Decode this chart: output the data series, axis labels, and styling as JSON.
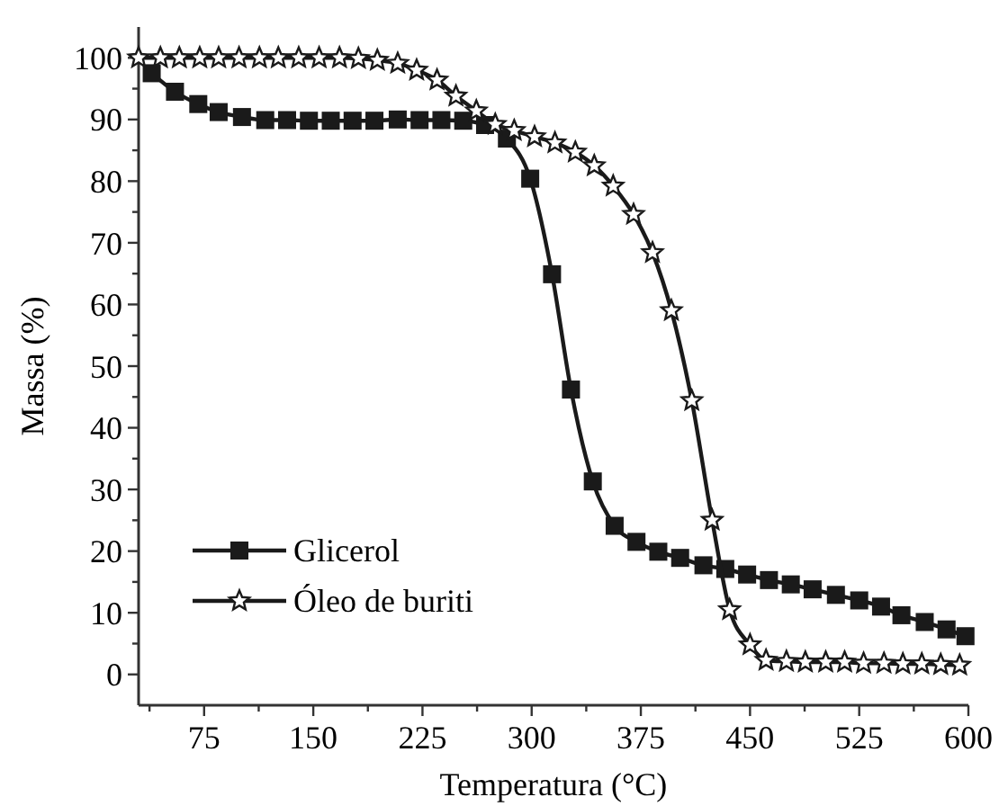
{
  "chart_data": {
    "type": "line",
    "xlabel": "Temperatura (°C)",
    "ylabel": "Massa (%)",
    "xlim": [
      30,
      600
    ],
    "ylim": [
      -5,
      105
    ],
    "xticks": [
      {
        "value": 37.5,
        "label": null
      },
      75,
      {
        "value": 112.5,
        "label": null
      },
      150,
      {
        "value": 187.5,
        "label": null
      },
      225,
      {
        "value": 262.5,
        "label": null
      },
      300,
      {
        "value": 337.5,
        "label": null
      },
      375,
      {
        "value": 412.5,
        "label": null
      },
      450,
      {
        "value": 487.5,
        "label": null
      },
      525,
      {
        "value": 562.5,
        "label": null
      },
      600
    ],
    "yticks": [
      0,
      {
        "value": 5,
        "label": null
      },
      10,
      {
        "value": 15,
        "label": null
      },
      20,
      {
        "value": 25,
        "label": null
      },
      30,
      {
        "value": 35,
        "label": null
      },
      40,
      {
        "value": 45,
        "label": null
      },
      50,
      {
        "value": 55,
        "label": null
      },
      60,
      {
        "value": 65,
        "label": null
      },
      70,
      {
        "value": 75,
        "label": null
      },
      80,
      {
        "value": 85,
        "label": null
      },
      90,
      {
        "value": 95,
        "label": null
      },
      100
    ],
    "grid": false,
    "legend": "bottom left",
    "line_style": "solid",
    "series": [
      {
        "name": "Glicerol",
        "color": "#1a1a1a",
        "marker": "square",
        "x": [
          39,
          55,
          71,
          85,
          101,
          117,
          132,
          147,
          162,
          177,
          192,
          208,
          223,
          238,
          253,
          268,
          283,
          299,
          314,
          327,
          342,
          357,
          372,
          387,
          402,
          418,
          433,
          448,
          463,
          478,
          493,
          509,
          525,
          540,
          554,
          570,
          585,
          598
        ],
        "values": [
          97.5,
          94.5,
          92.5,
          91.2,
          90.4,
          89.9,
          89.9,
          89.8,
          89.8,
          89.8,
          89.8,
          90,
          89.9,
          89.9,
          89.8,
          89.1,
          86.9,
          80.4,
          64.9,
          46.2,
          31.3,
          24.1,
          21.5,
          19.9,
          18.9,
          17.7,
          17.1,
          16.2,
          15.3,
          14.6,
          13.8,
          12.9,
          12,
          11,
          9.6,
          8.5,
          7.3,
          6.2
        ]
      },
      {
        "name": "Óleo de buriti",
        "color": "#1a1a1a",
        "marker": "star",
        "x": [
          30,
          45,
          58,
          72,
          85,
          99,
          113,
          126,
          140,
          154,
          168,
          181,
          194,
          208,
          221,
          235,
          248,
          262,
          275,
          288,
          302,
          316,
          330,
          343,
          356,
          370,
          383,
          396,
          410,
          424,
          436,
          450,
          461,
          475,
          488,
          502,
          515,
          528,
          542,
          555,
          568,
          581,
          594
        ],
        "values": [
          100,
          100,
          100,
          100,
          100,
          100,
          100,
          100,
          100,
          100,
          100,
          99.9,
          99.6,
          99.1,
          98,
          96.4,
          93.8,
          91.4,
          89.2,
          88.2,
          87.2,
          86.2,
          84.7,
          82.5,
          79.2,
          74.6,
          68.4,
          59,
          44.4,
          25,
          10.5,
          4.8,
          2.3,
          2.1,
          2,
          2,
          2,
          1.8,
          1.8,
          1.7,
          1.7,
          1.6,
          1.5
        ]
      }
    ]
  }
}
